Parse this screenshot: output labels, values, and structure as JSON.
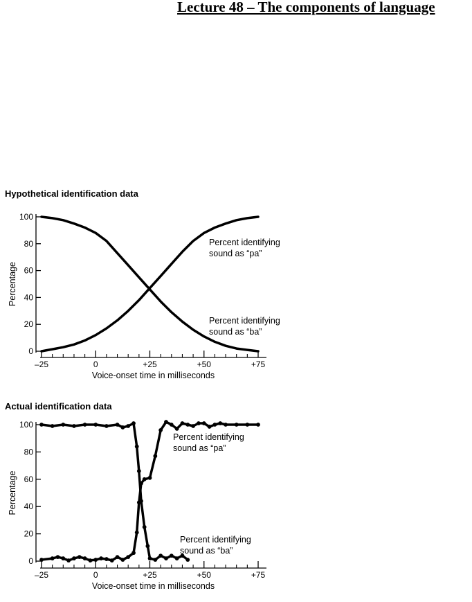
{
  "page": {
    "title": "Lecture 48 – The components of language"
  },
  "chart_data": [
    {
      "type": "line",
      "title": "Hypothetical identification data",
      "xlabel": "Voice-onset time in milliseconds",
      "ylabel": "Percentage",
      "xlim": [
        -25,
        75
      ],
      "ylim": [
        0,
        100
      ],
      "xticks": [
        -25,
        0,
        25,
        50,
        75
      ],
      "xtick_labels": [
        "–25",
        "0",
        "+25",
        "+50",
        "+75"
      ],
      "xminor": [
        -20,
        -15,
        -10,
        -5,
        5,
        10,
        15,
        20,
        30,
        35,
        40,
        45,
        55,
        60,
        65,
        70
      ],
      "yticks": [
        0,
        20,
        40,
        60,
        80,
        100
      ],
      "ytick_labels": [
        "0",
        "20",
        "40",
        "60",
        "80",
        "100"
      ],
      "grid": false,
      "series": [
        {
          "name": "Percent identifying sound as \"pa\"",
          "label_lines": [
            "Percent identifying",
            "sound as “pa”"
          ],
          "x": [
            -25,
            -20,
            -15,
            -10,
            -5,
            0,
            5,
            10,
            15,
            20,
            25,
            30,
            35,
            40,
            45,
            50,
            55,
            60,
            65,
            70,
            75
          ],
          "y": [
            0,
            1.5,
            3,
            5,
            8,
            12,
            17,
            23,
            30,
            38,
            47,
            56,
            65,
            74,
            82,
            88,
            92,
            95,
            97.5,
            99,
            100
          ]
        },
        {
          "name": "Percent identifying sound as \"ba\"",
          "label_lines": [
            "Percent identifying",
            "sound as “ba”"
          ],
          "x": [
            -25,
            -20,
            -15,
            -10,
            -5,
            0,
            5,
            10,
            15,
            20,
            25,
            30,
            35,
            40,
            45,
            50,
            55,
            60,
            65,
            70,
            75
          ],
          "y": [
            100,
            99,
            97.5,
            95,
            92,
            88,
            82,
            73,
            64,
            55,
            46,
            37,
            29,
            22,
            16,
            11,
            7,
            4,
            2,
            1,
            0
          ]
        }
      ]
    },
    {
      "type": "line",
      "title": "Actual identification data",
      "xlabel": "Voice-onset time in milliseconds",
      "ylabel": "Percentage",
      "xlim": [
        -25,
        75
      ],
      "ylim": [
        0,
        100
      ],
      "xticks": [
        -25,
        0,
        25,
        50,
        75
      ],
      "xtick_labels": [
        "–25",
        "0",
        "+25",
        "+50",
        "+75"
      ],
      "xminor": [
        -20,
        -15,
        -10,
        -5,
        5,
        10,
        15,
        20,
        30,
        35,
        40,
        45,
        55,
        60,
        65,
        70
      ],
      "yticks": [
        0,
        20,
        40,
        60,
        80,
        100
      ],
      "ytick_labels": [
        "0",
        "20",
        "40",
        "60",
        "80",
        "100"
      ],
      "grid": false,
      "series": [
        {
          "name": "Percent identifying sound as \"pa\"",
          "label_lines": [
            "Percent identifying",
            "sound as “pa”"
          ],
          "x": [
            -25,
            -20,
            -17.5,
            -15,
            -12.5,
            -10,
            -7.5,
            -5,
            -2.5,
            0,
            2.5,
            5,
            7.5,
            10,
            12.5,
            15,
            17.5,
            19,
            20,
            21,
            22.5,
            25,
            27.5,
            30,
            32.5,
            35,
            37.5,
            40,
            42.5,
            45,
            47.5,
            50,
            52.5,
            55,
            57.5,
            60,
            65,
            70,
            75
          ],
          "y": [
            1,
            2,
            3,
            2,
            0.5,
            2,
            3,
            2,
            0.5,
            1,
            2,
            1.5,
            0.5,
            3,
            1,
            3,
            6,
            21,
            43,
            57,
            60,
            61,
            77,
            96,
            102,
            100,
            97,
            101,
            100,
            99,
            101,
            101,
            98.5,
            100,
            101,
            100,
            100,
            100,
            100
          ]
        },
        {
          "name": "Percent identifying sound as \"ba\"",
          "label_lines": [
            "Percent identifying",
            "sound as “ba”"
          ],
          "x": [
            -25,
            -20,
            -15,
            -10,
            -5,
            0,
            5,
            10,
            12.5,
            15,
            17.5,
            19,
            20,
            21,
            22.5,
            24,
            25,
            27.5,
            30,
            32.5,
            35,
            37.5,
            40,
            42.5
          ],
          "y": [
            100,
            99,
            100,
            99,
            100,
            100,
            99,
            100,
            98,
            99,
            101,
            84,
            66,
            44,
            25,
            11,
            2,
            1,
            4,
            2,
            4,
            2,
            4,
            1
          ]
        }
      ]
    }
  ]
}
